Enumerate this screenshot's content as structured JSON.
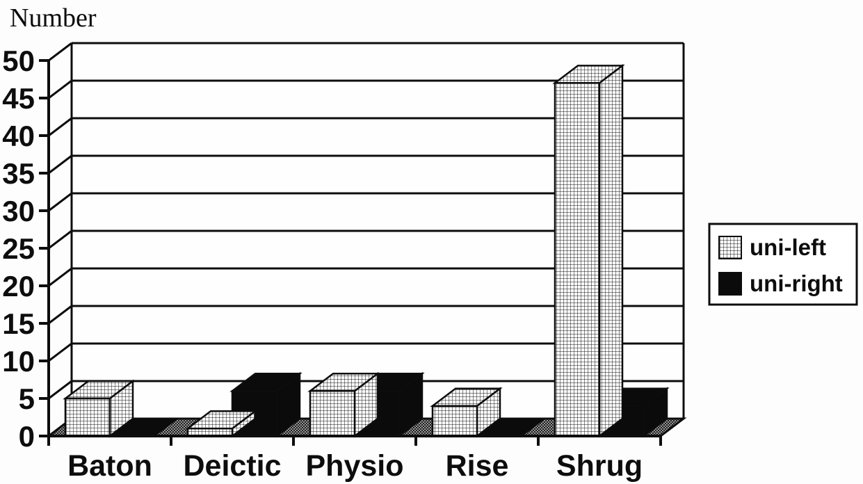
{
  "chart_data": {
    "type": "bar",
    "style": "3d-oblique-scanned-monochrome",
    "title": "",
    "ylabel": "Number",
    "xlabel": "",
    "categories": [
      "Baton",
      "Deictic",
      "Physio",
      "Rise",
      "Shrug"
    ],
    "series": [
      {
        "name": "uni-left",
        "fill": "crosshatch-pattern",
        "values": [
          5,
          1,
          6,
          4,
          47
        ]
      },
      {
        "name": "uni-right",
        "fill": "solid-black",
        "values": [
          0,
          6,
          6,
          0,
          4
        ]
      }
    ],
    "ylim": [
      0,
      50
    ],
    "ytick_step": 5,
    "ytick_labels": [
      "0",
      "5",
      "10",
      "15",
      "20",
      "25",
      "30",
      "35",
      "40",
      "45",
      "50"
    ],
    "grid": true,
    "legend_position": "right",
    "legend_entries": [
      "uni-left",
      "uni-right"
    ]
  },
  "colors": {
    "ink": "#0d0d0d",
    "bar_black": "#0b0b0b",
    "wall_white": "#fefefe",
    "floor_dark": "#1d1d1d",
    "floor_light": "#969696",
    "hatch_bg": "#fbfbfb",
    "page_bg": "#fdfdfd"
  }
}
